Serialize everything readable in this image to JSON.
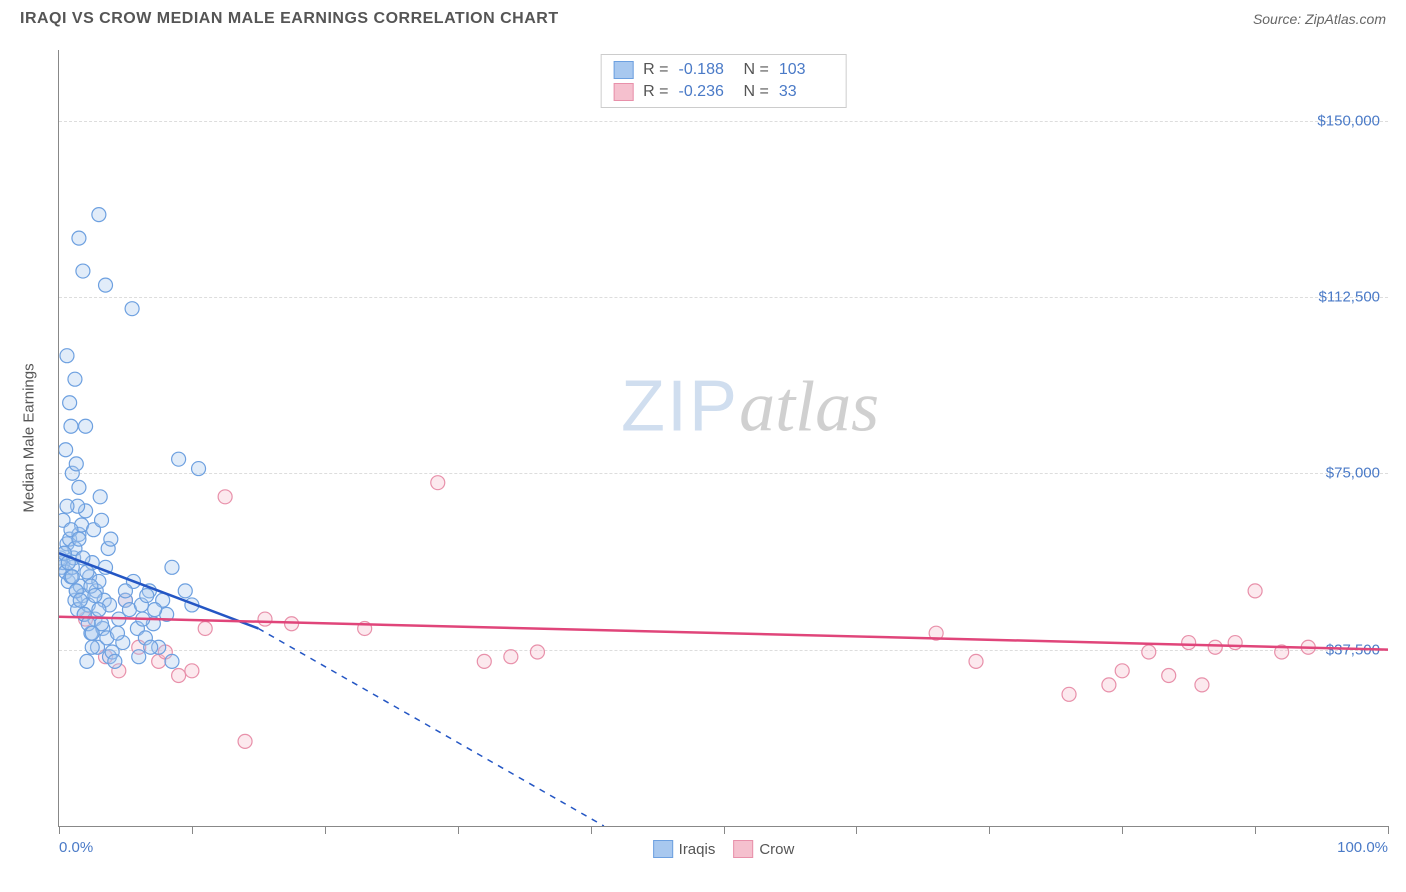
{
  "title": "IRAQI VS CROW MEDIAN MALE EARNINGS CORRELATION CHART",
  "source_label": "Source:",
  "source_name": "ZipAtlas.com",
  "y_axis_title": "Median Male Earnings",
  "watermark_zip": "ZIP",
  "watermark_atlas": "atlas",
  "chart": {
    "type": "scatter",
    "xlim": [
      0,
      100
    ],
    "ylim": [
      0,
      165000
    ],
    "x_min_label": "0.0%",
    "x_max_label": "100.0%",
    "y_ticks": [
      37500,
      75000,
      112500,
      150000
    ],
    "y_tick_labels": [
      "$37,500",
      "$75,000",
      "$112,500",
      "$150,000"
    ],
    "x_tick_positions": [
      0,
      10,
      20,
      30,
      40,
      50,
      60,
      70,
      80,
      90,
      100
    ],
    "background_color": "#ffffff",
    "grid_color": "#dddddd",
    "marker_radius": 7,
    "marker_fill_opacity": 0.35,
    "marker_stroke_width": 1.2,
    "series": [
      {
        "name": "Iraqis",
        "color_fill": "#a8c8ef",
        "color_stroke": "#6da0e0",
        "R": "-0.188",
        "N": "103",
        "regression_solid": {
          "x1": 0,
          "y1": 58000,
          "x2": 15,
          "y2": 42000
        },
        "regression_dashed": {
          "x1": 15,
          "y1": 42000,
          "x2": 41,
          "y2": 0
        },
        "points": [
          [
            0.1,
            57000
          ],
          [
            0.2,
            55000
          ],
          [
            0.3,
            56000
          ],
          [
            0.4,
            58000
          ],
          [
            0.5,
            54000
          ],
          [
            0.6,
            60000
          ],
          [
            0.7,
            52000
          ],
          [
            0.8,
            61000
          ],
          [
            0.9,
            53000
          ],
          [
            1.0,
            55000
          ],
          [
            1.1,
            57000
          ],
          [
            1.2,
            48000
          ],
          [
            1.3,
            50000
          ],
          [
            1.4,
            46000
          ],
          [
            1.5,
            62000
          ],
          [
            1.6,
            51000
          ],
          [
            1.7,
            64000
          ],
          [
            1.8,
            49000
          ],
          [
            1.9,
            45000
          ],
          [
            2.0,
            67000
          ],
          [
            2.1,
            35000
          ],
          [
            2.2,
            47000
          ],
          [
            2.3,
            53000
          ],
          [
            2.4,
            41000
          ],
          [
            2.5,
            56000
          ],
          [
            2.6,
            63000
          ],
          [
            2.7,
            44000
          ],
          [
            2.8,
            50000
          ],
          [
            2.9,
            38000
          ],
          [
            3.0,
            52000
          ],
          [
            3.1,
            70000
          ],
          [
            3.2,
            65000
          ],
          [
            3.3,
            42000
          ],
          [
            3.4,
            48000
          ],
          [
            3.5,
            55000
          ],
          [
            3.6,
            40000
          ],
          [
            3.7,
            59000
          ],
          [
            3.8,
            36000
          ],
          [
            3.9,
            61000
          ],
          [
            4.0,
            37000
          ],
          [
            1.0,
            75000
          ],
          [
            1.3,
            77000
          ],
          [
            1.5,
            72000
          ],
          [
            2.0,
            85000
          ],
          [
            0.5,
            80000
          ],
          [
            0.8,
            90000
          ],
          [
            1.2,
            95000
          ],
          [
            0.6,
            100000
          ],
          [
            0.9,
            85000
          ],
          [
            1.4,
            68000
          ],
          [
            4.2,
            35000
          ],
          [
            4.5,
            44000
          ],
          [
            4.8,
            39000
          ],
          [
            5.0,
            48000
          ],
          [
            5.3,
            46000
          ],
          [
            5.6,
            52000
          ],
          [
            5.9,
            42000
          ],
          [
            6.2,
            47000
          ],
          [
            6.5,
            40000
          ],
          [
            6.8,
            50000
          ],
          [
            7.1,
            43000
          ],
          [
            7.5,
            38000
          ],
          [
            7.8,
            48000
          ],
          [
            8.1,
            45000
          ],
          [
            8.5,
            35000
          ],
          [
            3.5,
            115000
          ],
          [
            5.5,
            110000
          ],
          [
            3.0,
            130000
          ],
          [
            1.5,
            125000
          ],
          [
            1.8,
            118000
          ],
          [
            6.0,
            36000
          ],
          [
            6.3,
            44000
          ],
          [
            6.6,
            49000
          ],
          [
            6.9,
            38000
          ],
          [
            7.2,
            46000
          ],
          [
            9.0,
            78000
          ],
          [
            10.5,
            76000
          ],
          [
            8.5,
            55000
          ],
          [
            9.5,
            50000
          ],
          [
            10.0,
            47000
          ],
          [
            2.5,
            38000
          ],
          [
            3.2,
            43000
          ],
          [
            3.8,
            47000
          ],
          [
            4.4,
            41000
          ],
          [
            5.0,
            50000
          ],
          [
            0.3,
            65000
          ],
          [
            0.6,
            68000
          ],
          [
            0.9,
            63000
          ],
          [
            1.2,
            59000
          ],
          [
            1.5,
            61000
          ],
          [
            1.8,
            57000
          ],
          [
            2.1,
            54000
          ],
          [
            2.4,
            51000
          ],
          [
            2.7,
            49000
          ],
          [
            3.0,
            46000
          ],
          [
            0.4,
            58000
          ],
          [
            0.7,
            56000
          ],
          [
            1.0,
            53000
          ],
          [
            1.3,
            50000
          ],
          [
            1.6,
            48000
          ],
          [
            1.9,
            45000
          ],
          [
            2.2,
            43000
          ],
          [
            2.5,
            41000
          ]
        ]
      },
      {
        "name": "Crow",
        "color_fill": "#f5c0ce",
        "color_stroke": "#e890aa",
        "R": "-0.236",
        "N": "33",
        "regression_solid": {
          "x1": 0,
          "y1": 44500,
          "x2": 100,
          "y2": 37500
        },
        "regression_dashed": null,
        "points": [
          [
            2.0,
            44000
          ],
          [
            3.5,
            36000
          ],
          [
            4.5,
            33000
          ],
          [
            5.0,
            48000
          ],
          [
            6.0,
            38000
          ],
          [
            7.5,
            35000
          ],
          [
            9.0,
            32000
          ],
          [
            11.0,
            42000
          ],
          [
            12.5,
            70000
          ],
          [
            14.0,
            18000
          ],
          [
            15.5,
            44000
          ],
          [
            17.5,
            43000
          ],
          [
            23.0,
            42000
          ],
          [
            28.5,
            73000
          ],
          [
            32.0,
            35000
          ],
          [
            34.0,
            36000
          ],
          [
            36.0,
            37000
          ],
          [
            66.0,
            41000
          ],
          [
            69.0,
            35000
          ],
          [
            76.0,
            28000
          ],
          [
            79.0,
            30000
          ],
          [
            80.0,
            33000
          ],
          [
            82.0,
            37000
          ],
          [
            83.5,
            32000
          ],
          [
            85.0,
            39000
          ],
          [
            86.0,
            30000
          ],
          [
            87.0,
            38000
          ],
          [
            88.5,
            39000
          ],
          [
            90.0,
            50000
          ],
          [
            92.0,
            37000
          ],
          [
            94.0,
            38000
          ],
          [
            8.0,
            37000
          ],
          [
            10.0,
            33000
          ]
        ]
      }
    ]
  },
  "stats_labels": {
    "R": "R =",
    "N": "N ="
  },
  "reg_line_color_blue": "#2456c4",
  "reg_line_color_pink": "#e0457a"
}
